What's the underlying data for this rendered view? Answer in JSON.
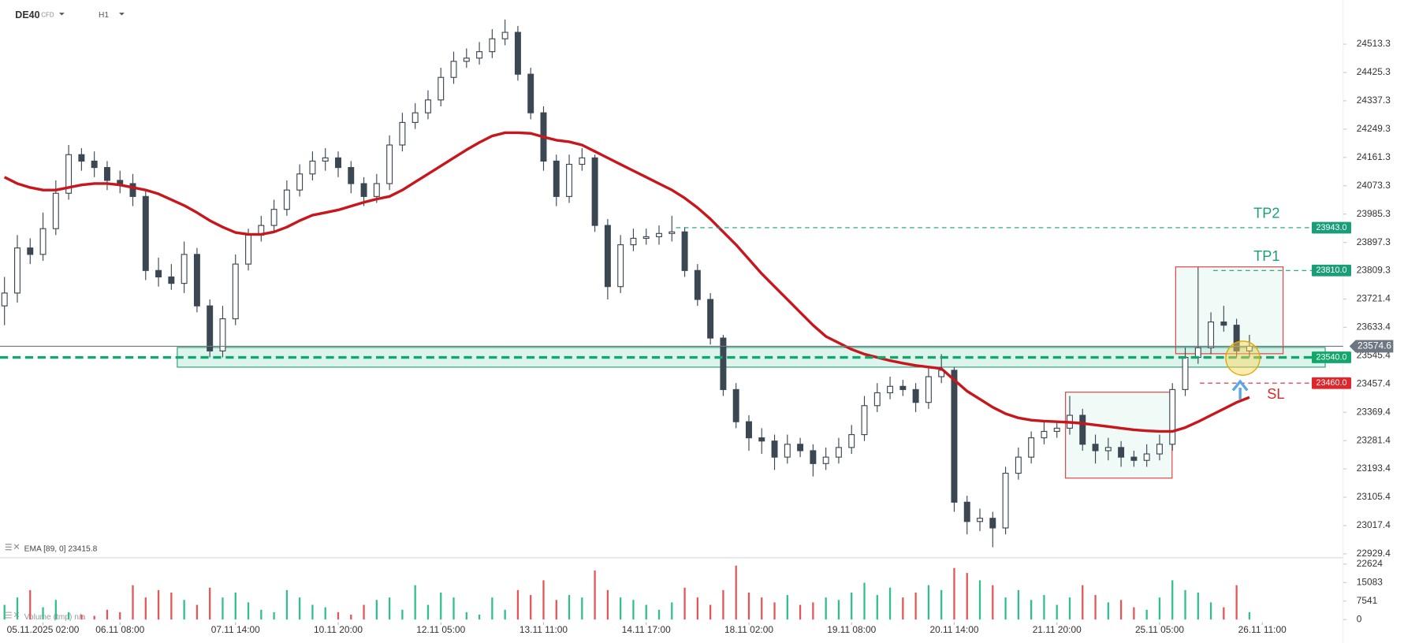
{
  "chart_data": {
    "type": "candlestick",
    "symbol": "DE40",
    "instrument_tag": "CFD",
    "timeframe": "H1",
    "xlim": [
      -0.35,
      104.3
    ],
    "xticks": [
      {
        "value": 3,
        "label": "05.11.2025 02:00"
      },
      {
        "value": 9,
        "label": "06.11 08:00"
      },
      {
        "value": 18,
        "label": "07.11 14:00"
      },
      {
        "value": 26,
        "label": "10.11 20:00"
      },
      {
        "value": 34,
        "label": "12.11 05:00"
      },
      {
        "value": 42,
        "label": "13.11 11:00"
      },
      {
        "value": 50,
        "label": "14.11 17:00"
      },
      {
        "value": 58,
        "label": "18.11 02:00"
      },
      {
        "value": 66,
        "label": "19.11 08:00"
      },
      {
        "value": 74,
        "label": "20.11 14:00"
      },
      {
        "value": 82,
        "label": "21.11 20:00"
      },
      {
        "value": 90,
        "label": "25.11 05:00"
      },
      {
        "value": 98,
        "label": "26.11 11:00"
      }
    ],
    "ylim": [
      22920,
      24650
    ],
    "yticks": [
      24513.3,
      24425.3,
      24337.3,
      24249.3,
      24161.3,
      24073.3,
      23985.3,
      23897.3,
      23809.3,
      23721.4,
      23633.4,
      23545.4,
      23457.4,
      23369.4,
      23281.4,
      23193.4,
      23105.4,
      23017.4,
      22929.4
    ],
    "grid": false,
    "up_color": "#ffffff",
    "down_color": "#3b4753",
    "open": [
      23700,
      23740,
      23880,
      23860,
      23940,
      24050,
      24170,
      24150,
      24130,
      24090,
      24080,
      24040,
      23810,
      23790,
      23770,
      23860,
      23700,
      23560,
      23660,
      23830,
      23920,
      23950,
      24000,
      24060,
      24110,
      24150,
      24160,
      24130,
      24080,
      24040,
      24080,
      24200,
      24270,
      24300,
      24340,
      24410,
      24460,
      24470,
      24490,
      24530,
      24550,
      24420,
      24300,
      24150,
      24040,
      24140,
      24160,
      23950,
      23760,
      23890,
      23910,
      23915,
      23925,
      23930,
      23810,
      23720,
      23600,
      23440,
      23340,
      23290,
      23280,
      23230,
      23270,
      23250,
      23210,
      23230,
      23260,
      23300,
      23390,
      23430,
      23450,
      23440,
      23400,
      23480,
      23500,
      23090,
      23030,
      23040,
      23010,
      23180,
      23230,
      23290,
      23310,
      23320,
      23360,
      23270,
      23250,
      23260,
      23230,
      23220,
      23240,
      23270,
      23440,
      23540,
      23570,
      23650,
      23640,
      23560
    ],
    "high": [
      23790,
      23920,
      23910,
      23990,
      24090,
      24200,
      24190,
      24180,
      24150,
      24120,
      24110,
      24060,
      23850,
      23830,
      23900,
      23880,
      23720,
      23700,
      23860,
      23940,
      23980,
      24030,
      24090,
      24140,
      24180,
      24190,
      24180,
      24150,
      24100,
      24110,
      24230,
      24300,
      24330,
      24370,
      24440,
      24490,
      24500,
      24520,
      24560,
      24590,
      24570,
      24440,
      24320,
      24170,
      24170,
      24190,
      24170,
      23970,
      23920,
      23940,
      23940,
      23950,
      23980,
      23945,
      23830,
      23740,
      23610,
      23460,
      23360,
      23320,
      23300,
      23300,
      23290,
      23270,
      23260,
      23290,
      23330,
      23420,
      23460,
      23480,
      23470,
      23460,
      23510,
      23550,
      23510,
      23110,
      23070,
      23060,
      23200,
      23260,
      23310,
      23340,
      23340,
      23420,
      23380,
      23300,
      23290,
      23280,
      23250,
      23270,
      23300,
      23460,
      23570,
      23820,
      23680,
      23700,
      23660,
      23610
    ],
    "low": [
      23640,
      23710,
      23830,
      23840,
      23920,
      24030,
      24120,
      24100,
      24060,
      24050,
      24010,
      23780,
      23760,
      23750,
      23740,
      23680,
      23540,
      23540,
      23640,
      23810,
      23900,
      23930,
      23980,
      24040,
      24090,
      24120,
      24100,
      24050,
      24010,
      24020,
      24060,
      24180,
      24250,
      24280,
      24320,
      24390,
      24440,
      24450,
      24470,
      24510,
      24400,
      24280,
      24120,
      24010,
      24020,
      24120,
      23930,
      23720,
      23740,
      23870,
      23890,
      23890,
      23900,
      23790,
      23700,
      23580,
      23420,
      23320,
      23250,
      23240,
      23190,
      23210,
      23230,
      23170,
      23190,
      23210,
      23240,
      23280,
      23370,
      23410,
      23420,
      23370,
      23380,
      23460,
      23060,
      22990,
      23000,
      22950,
      22990,
      23160,
      23210,
      23270,
      23290,
      23300,
      23250,
      23210,
      23220,
      23200,
      23200,
      23200,
      23220,
      23250,
      23420,
      23520,
      23550,
      23620,
      23540,
      23540
    ],
    "close": [
      23740,
      23880,
      23860,
      23940,
      24050,
      24170,
      24150,
      24130,
      24090,
      24080,
      24040,
      23810,
      23790,
      23770,
      23860,
      23700,
      23560,
      23660,
      23830,
      23920,
      23950,
      24000,
      24060,
      24110,
      24150,
      24160,
      24130,
      24080,
      24040,
      24080,
      24200,
      24270,
      24300,
      24340,
      24410,
      24460,
      24470,
      24490,
      24530,
      24550,
      24420,
      24300,
      24150,
      24040,
      24140,
      24160,
      23950,
      23760,
      23890,
      23910,
      23915,
      23925,
      23930,
      23810,
      23720,
      23600,
      23440,
      23340,
      23290,
      23280,
      23230,
      23270,
      23250,
      23210,
      23230,
      23260,
      23300,
      23390,
      23430,
      23450,
      23440,
      23400,
      23480,
      23500,
      23090,
      23030,
      23040,
      23010,
      23180,
      23230,
      23290,
      23310,
      23320,
      23360,
      23270,
      23250,
      23260,
      23230,
      23220,
      23240,
      23270,
      23440,
      23540,
      23570,
      23650,
      23640,
      23560,
      23574.6
    ],
    "ema": {
      "name": "EMA [89, 0]",
      "color": "#c8161d",
      "values": [
        24100,
        24080,
        24068,
        24060,
        24060,
        24068,
        24076,
        24080,
        24080,
        24076,
        24068,
        24060,
        24048,
        24030,
        24012,
        23990,
        23965,
        23945,
        23928,
        23922,
        23922,
        23930,
        23945,
        23965,
        23982,
        23990,
        23998,
        24010,
        24022,
        24032,
        24040,
        24060,
        24085,
        24110,
        24135,
        24160,
        24185,
        24208,
        24228,
        24238,
        24238,
        24236,
        24225,
        24215,
        24210,
        24200,
        24180,
        24160,
        24140,
        24120,
        24100,
        24080,
        24060,
        24035,
        24005,
        23970,
        23930,
        23890,
        23845,
        23800,
        23760,
        23720,
        23680,
        23640,
        23605,
        23585,
        23565,
        23550,
        23540,
        23530,
        23522,
        23515,
        23510,
        23505,
        23470,
        23435,
        23410,
        23385,
        23365,
        23352,
        23345,
        23342,
        23340,
        23338,
        23335,
        23330,
        23325,
        23320,
        23315,
        23312,
        23310,
        23310,
        23322,
        23340,
        23360,
        23380,
        23400,
        23415.8
      ]
    },
    "volume": {
      "name": "Volume (tmp)",
      "status": "n/a",
      "up_color": "#2fbf8f",
      "down_color": "#e35656",
      "ylim": [
        0,
        22624
      ],
      "yticks": [
        22624,
        15083,
        7541,
        0
      ],
      "values": [
        6000,
        9000,
        12000,
        5000,
        8000,
        3000,
        2000,
        1500,
        4000,
        3000,
        14000,
        9000,
        12000,
        11000,
        8000,
        6000,
        13000,
        9000,
        11000,
        7000,
        4000,
        3000,
        12000,
        9000,
        6000,
        5000,
        3000,
        2000,
        6000,
        8000,
        9000,
        4000,
        14000,
        6000,
        11000,
        9000,
        3000,
        2000,
        9000,
        4000,
        12000,
        10000,
        16000,
        8000,
        10000,
        9000,
        20000,
        12000,
        9000,
        8000,
        6000,
        4000,
        7000,
        13000,
        9000,
        6000,
        12000,
        22000,
        11000,
        9000,
        7000,
        10000,
        6000,
        7000,
        9000,
        8000,
        11000,
        15000,
        10000,
        13000,
        9000,
        11000,
        14000,
        12000,
        21000,
        19000,
        16000,
        14000,
        9000,
        12000,
        8000,
        10000,
        6000,
        9000,
        14000,
        10000,
        7000,
        8000,
        5000,
        4000,
        9000,
        16000,
        12000,
        11000,
        7000,
        5000,
        14000,
        3000
      ]
    },
    "levels": [
      {
        "name": "TP2",
        "value": 23943,
        "label": "23943.0",
        "color": "#1a9e7a",
        "line": "dashed"
      },
      {
        "name": "TP1",
        "value": 23810,
        "label": "23810.0",
        "color": "#1a9e7a",
        "line": "dashed"
      },
      {
        "value": 23574.6,
        "color": "#6d7781",
        "line": "solid"
      },
      {
        "value": 23540,
        "label": "23540.0",
        "color": "#12a86b",
        "line": "thick-dashed"
      },
      {
        "name": "SL",
        "value": 23460,
        "label": "23460.0",
        "color": "#e0252b",
        "line": "dashed"
      }
    ]
  }
}
